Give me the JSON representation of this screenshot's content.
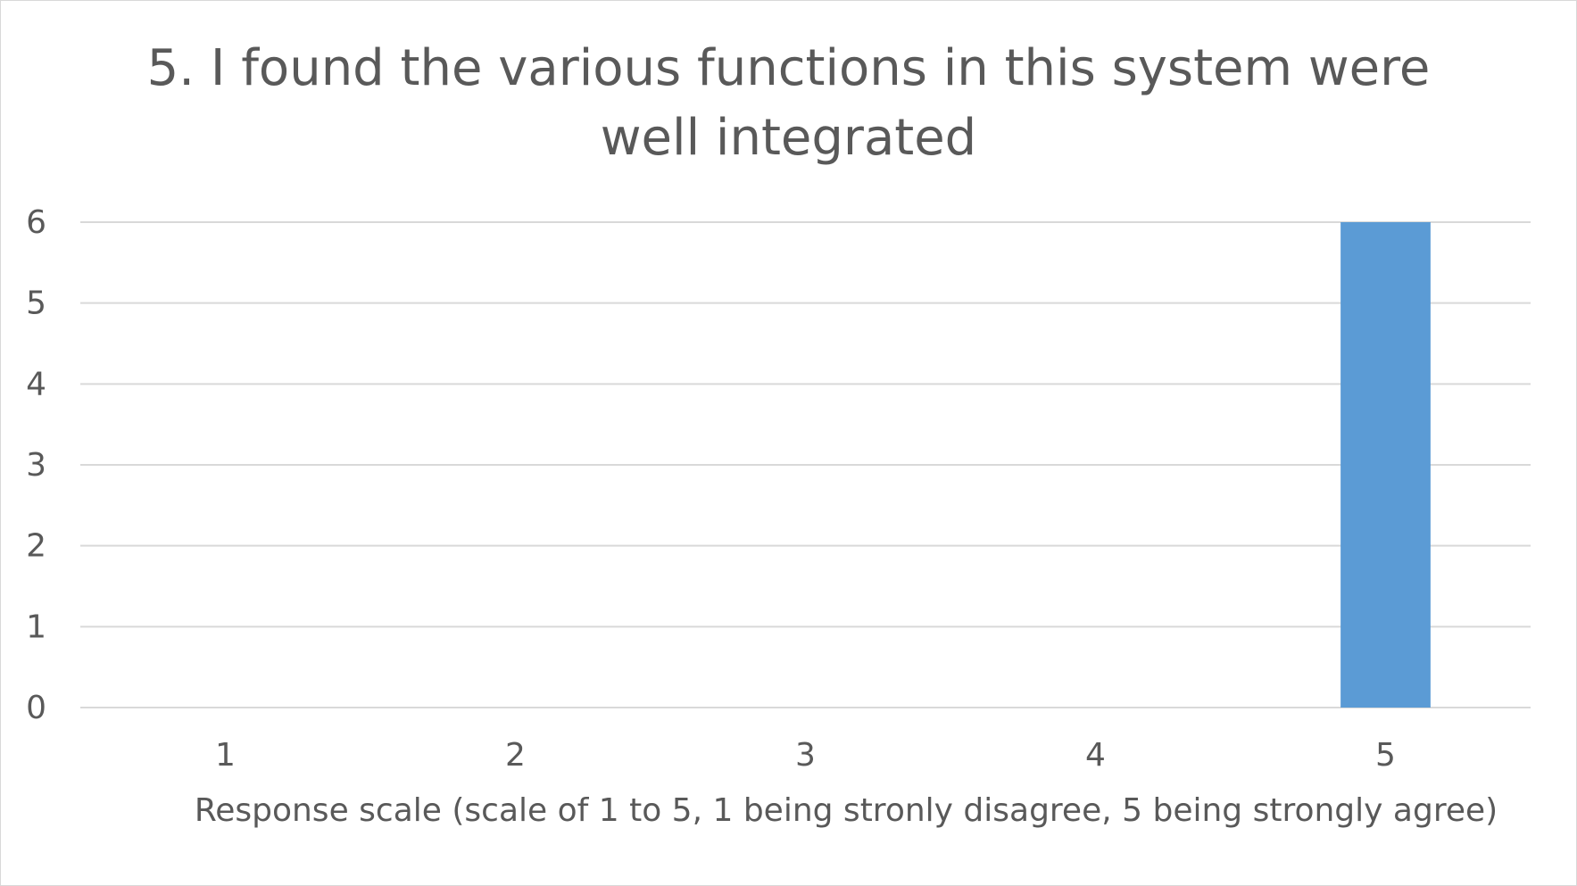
{
  "chart_data": {
    "type": "bar",
    "title_lines": [
      "5. I found the various functions in this system were",
      "well integrated"
    ],
    "xlabel": "Response scale (scale of 1 to 5, 1 being stronly disagree, 5 being strongly agree)",
    "ylabel": "",
    "categories": [
      "1",
      "2",
      "3",
      "4",
      "5"
    ],
    "values": [
      0,
      0,
      0,
      0,
      6
    ],
    "ylim": [
      0,
      6
    ],
    "yticks": [
      0,
      1,
      2,
      3,
      4,
      5,
      6
    ],
    "ytick_labels": [
      "0",
      "1",
      "2",
      "3",
      "4",
      "5",
      "6"
    ],
    "grid": true,
    "legend": "none",
    "bar_color": "#5b9bd5",
    "grid_color": "#d9d9d9",
    "text_color": "#595959"
  }
}
